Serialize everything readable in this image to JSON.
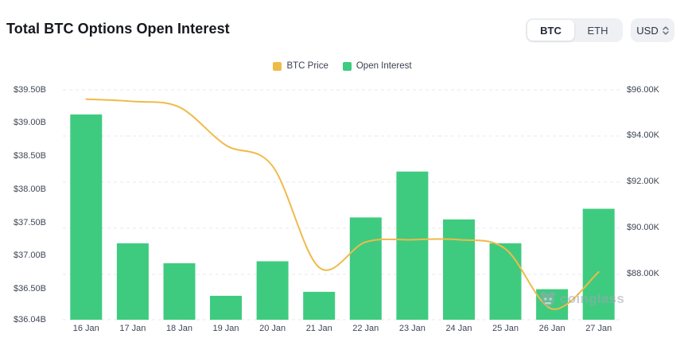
{
  "header": {
    "title": "Total BTC Options Open Interest",
    "coin_toggle": {
      "options": [
        "BTC",
        "ETH"
      ],
      "selected": "BTC"
    },
    "currency_select": {
      "value": "USD"
    }
  },
  "legend": [
    {
      "label": "BTC Price",
      "color": "#f0ba4a"
    },
    {
      "label": "Open Interest",
      "color": "#3ecb80"
    }
  ],
  "watermark": {
    "brand": "coinglass"
  },
  "chart_data": {
    "type": "bar",
    "subtype": "dual-axis bar+line combo",
    "categories": [
      "16 Jan",
      "17 Jan",
      "18 Jan",
      "19 Jan",
      "20 Jan",
      "21 Jan",
      "22 Jan",
      "23 Jan",
      "24 Jan",
      "25 Jan",
      "26 Jan",
      "27 Jan"
    ],
    "series": [
      {
        "name": "Open Interest",
        "type": "bar",
        "axis": "left",
        "unit": "billion USD",
        "color": "#3ecb80",
        "values": [
          39.13,
          37.19,
          36.89,
          36.4,
          36.92,
          36.46,
          37.58,
          38.27,
          37.55,
          37.19,
          36.5,
          37.71
        ]
      },
      {
        "name": "BTC Price",
        "type": "line",
        "axis": "right",
        "unit": "thousand USD",
        "color": "#f0ba4a",
        "smooth": true,
        "values": [
          95.6,
          95.5,
          95.25,
          93.6,
          92.7,
          88.3,
          89.4,
          89.5,
          89.5,
          89.1,
          86.5,
          88.1
        ]
      }
    ],
    "left_axis": {
      "min": 36.04,
      "max": 39.5,
      "tick_values": [
        39.5,
        39.0,
        38.5,
        38.0,
        37.5,
        37.0,
        36.5,
        36.04
      ],
      "tick_labels": [
        "$39.50B",
        "$39.00B",
        "$38.50B",
        "$38.00B",
        "$37.50B",
        "$37.00B",
        "$36.50B",
        "$36.04B"
      ]
    },
    "right_axis": {
      "min": 86.03,
      "max": 96.0,
      "tick_values": [
        96,
        94,
        92,
        90,
        88
      ],
      "tick_labels": [
        "$96.00K",
        "$94.00K",
        "$92.00K",
        "$90.00K",
        "$88.00K"
      ]
    },
    "grid": {
      "horizontal_dashed": true,
      "vertical": false,
      "gridline_color": "#e7e9ee"
    }
  }
}
